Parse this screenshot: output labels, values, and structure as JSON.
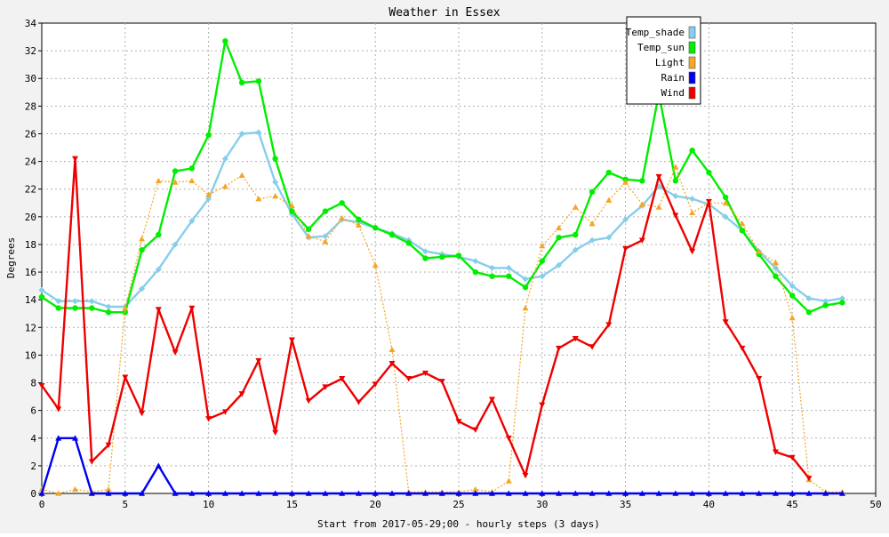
{
  "chart_data": {
    "type": "line",
    "title": "Weather in Essex",
    "xlabel": "Start from 2017-05-29;00 - hourly steps (3 days)",
    "ylabel": "Degrees",
    "xlim": [
      0,
      50
    ],
    "ylim": [
      0,
      34
    ],
    "xticks": [
      0,
      5,
      10,
      15,
      20,
      25,
      30,
      35,
      40,
      45,
      50
    ],
    "yticks": [
      0,
      2,
      4,
      6,
      8,
      10,
      12,
      14,
      16,
      18,
      20,
      22,
      24,
      26,
      28,
      30,
      32,
      34
    ],
    "grid": true,
    "legend_position": "top-right",
    "x": [
      0,
      1,
      2,
      3,
      4,
      5,
      6,
      7,
      8,
      9,
      10,
      11,
      12,
      13,
      14,
      15,
      16,
      17,
      18,
      19,
      20,
      21,
      22,
      23,
      24,
      25,
      26,
      27,
      28,
      29,
      30,
      31,
      32,
      33,
      34,
      35,
      36,
      37,
      38,
      39,
      40,
      41,
      42,
      43,
      44,
      45,
      46,
      47,
      48
    ],
    "series": [
      {
        "name": "Temp_shade",
        "color": "#87ceeb",
        "marker": "diamond",
        "dashed": false,
        "values": [
          14.7,
          13.9,
          13.9,
          13.9,
          13.5,
          13.5,
          14.8,
          16.2,
          18.0,
          19.7,
          21.3,
          24.2,
          26.0,
          26.1,
          22.5,
          20.2,
          18.5,
          18.6,
          19.8,
          19.6,
          19.2,
          18.8,
          18.3,
          17.5,
          17.3,
          17.1,
          16.8,
          16.3,
          16.3,
          15.5,
          15.7,
          16.5,
          17.6,
          18.3,
          18.5,
          19.8,
          20.8,
          22.2,
          21.5,
          21.3,
          20.9,
          20.0,
          19.0,
          17.5,
          16.3,
          15.0,
          14.1,
          13.9,
          14.1
        ]
      },
      {
        "name": "Temp_sun",
        "color": "#00ee00",
        "marker": "circle",
        "dashed": false,
        "values": [
          14.2,
          13.4,
          13.4,
          13.4,
          13.1,
          13.1,
          17.6,
          18.7,
          23.3,
          23.5,
          25.9,
          32.7,
          29.7,
          29.8,
          24.2,
          20.4,
          19.1,
          20.4,
          21.0,
          19.8,
          19.2,
          18.7,
          18.1,
          17.0,
          17.1,
          17.2,
          16.0,
          15.7,
          15.7,
          14.9,
          16.8,
          18.5,
          18.7,
          21.8,
          23.2,
          22.7,
          22.6,
          28.9,
          22.6,
          24.8,
          23.2,
          21.4,
          19.0,
          17.3,
          15.7,
          14.3,
          13.1,
          13.6,
          13.8
        ]
      },
      {
        "name": "Light",
        "color": "#f5a623",
        "marker": "triangle-up",
        "dashed": true,
        "values": [
          0.3,
          0.0,
          0.3,
          0.1,
          0.3,
          13.4,
          18.4,
          22.6,
          22.5,
          22.6,
          21.6,
          22.2,
          23.0,
          21.3,
          21.5,
          20.8,
          18.6,
          18.2,
          19.9,
          19.4,
          16.5,
          10.4,
          0.1,
          0.1,
          0.1,
          0.1,
          0.3,
          0.1,
          0.9,
          13.4,
          17.9,
          19.2,
          20.7,
          19.5,
          21.2,
          22.5,
          20.9,
          20.7,
          23.6,
          20.3,
          21.0,
          21.0,
          19.5,
          17.5,
          16.7,
          12.7,
          1.0,
          0.1,
          0.1
        ]
      },
      {
        "name": "Rain",
        "color": "#0000ee",
        "marker": "triangle-up",
        "dashed": false,
        "values": [
          0,
          4.0,
          4.0,
          0,
          0,
          0,
          0,
          2.0,
          0,
          0,
          0,
          0,
          0,
          0,
          0,
          0,
          0,
          0,
          0,
          0,
          0,
          0,
          0,
          0,
          0,
          0,
          0,
          0,
          0,
          0,
          0,
          0,
          0,
          0,
          0,
          0,
          0,
          0,
          0,
          0,
          0,
          0,
          0,
          0,
          0,
          0,
          0,
          0,
          0
        ]
      },
      {
        "name": "Wind",
        "color": "#ee0000",
        "marker": "triangle-down",
        "dashed": false,
        "values": [
          7.8,
          6.1,
          24.2,
          2.3,
          3.5,
          8.4,
          5.8,
          13.3,
          10.2,
          13.4,
          5.4,
          5.9,
          7.2,
          9.6,
          4.4,
          11.1,
          6.7,
          7.7,
          8.3,
          6.6,
          7.9,
          9.4,
          8.3,
          8.7,
          8.1,
          5.2,
          4.6,
          6.8,
          4.0,
          1.3,
          6.4,
          10.5,
          11.2,
          10.6,
          12.2,
          17.7,
          18.3,
          22.9,
          20.1,
          17.5,
          21.1,
          12.4,
          10.5,
          8.3,
          3.0,
          2.6,
          1.1,
          null,
          null
        ]
      }
    ]
  }
}
